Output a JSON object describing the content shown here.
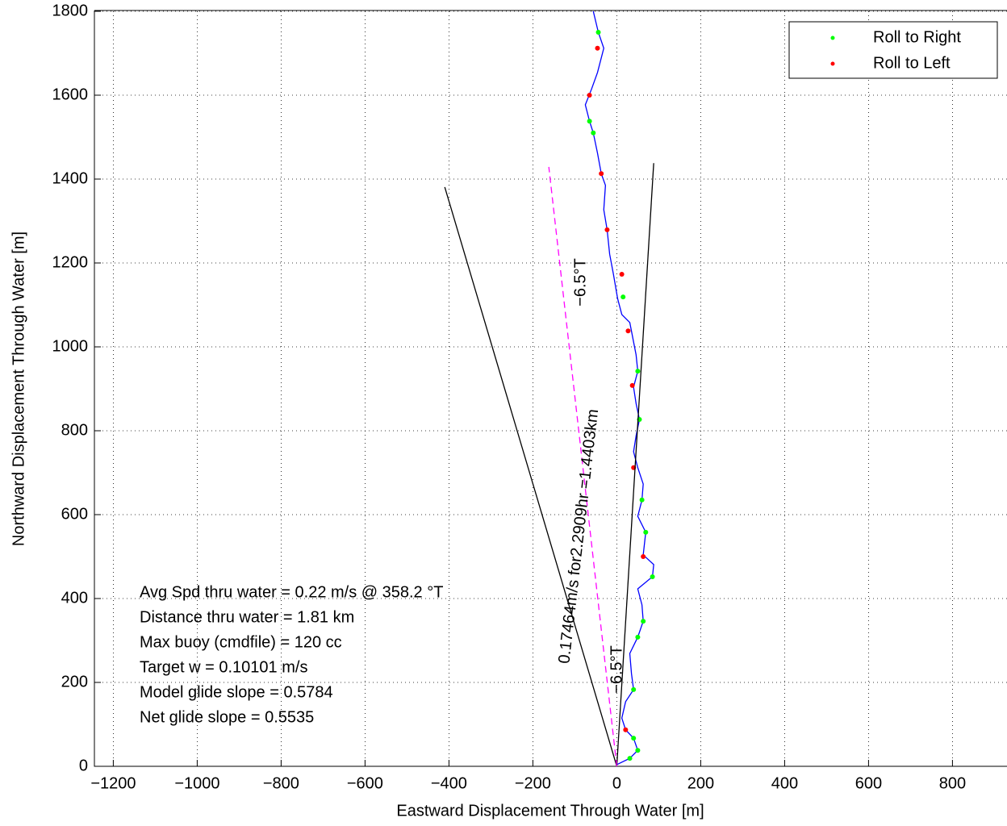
{
  "chart_data": {
    "type": "line",
    "xlabel": "Eastward Displacement Through Water [m]",
    "ylabel": "Northward Displacement Through Water [m]",
    "xlim": [
      -1245,
      930
    ],
    "ylim": [
      0,
      1800
    ],
    "xticks": [
      {
        "value": -1200,
        "label": "−1200"
      },
      {
        "value": -1000,
        "label": "−1000"
      },
      {
        "value": -800,
        "label": "−800"
      },
      {
        "value": -600,
        "label": "−600"
      },
      {
        "value": -400,
        "label": "−400"
      },
      {
        "value": -200,
        "label": "−200"
      },
      0,
      200,
      400,
      600,
      800
    ],
    "yticks": [
      0,
      200,
      400,
      600,
      800,
      1000,
      1200,
      1400,
      1600,
      1800
    ],
    "grid": true,
    "legend": "upper right",
    "series": [
      {
        "style": "line",
        "color": "#0000ff",
        "x": [
          0,
          31,
          50,
          40,
          21,
          12,
          21,
          40,
          35,
          31,
          50,
          63,
          60,
          50,
          85,
          88,
          63,
          69,
          50,
          60,
          63,
          50,
          40,
          46,
          54,
          46,
          40,
          50,
          46,
          31,
          12,
          2,
          -8,
          -17,
          -23,
          -31,
          -27,
          -37,
          -46,
          -56,
          -65,
          -75,
          -60,
          -46,
          -31,
          -44,
          -56
        ],
        "y": [
          4,
          19,
          38,
          67,
          87,
          115,
          154,
          183,
          221,
          269,
          308,
          346,
          385,
          423,
          452,
          481,
          504,
          558,
          596,
          635,
          673,
          712,
          750,
          788,
          827,
          865,
          904,
          942,
          981,
          1058,
          1077,
          1115,
          1173,
          1221,
          1279,
          1327,
          1385,
          1413,
          1462,
          1510,
          1538,
          1577,
          1615,
          1654,
          1712,
          1750,
          1800
        ]
      },
      {
        "style": "points",
        "name": "Roll to Right",
        "color": "#00ff00",
        "x": [
          31,
          50,
          40,
          40,
          50,
          63,
          85,
          69,
          60,
          54,
          50,
          15,
          -56,
          -65,
          -44
        ],
        "y": [
          19,
          38,
          67,
          183,
          308,
          346,
          452,
          558,
          635,
          827,
          942,
          1119,
          1510,
          1538,
          1750
        ]
      },
      {
        "style": "points",
        "name": "Roll to Left",
        "color": "#ff0000",
        "x": [
          21,
          63,
          40,
          37,
          27,
          12,
          -23,
          -37,
          -65,
          -46
        ],
        "y": [
          87,
          500,
          712,
          908,
          1038,
          1173,
          1279,
          1413,
          1600,
          1712
        ]
      },
      {
        "style": "line",
        "color": "#000000",
        "x": [
          0,
          -410
        ],
        "y": [
          0,
          1381
        ]
      },
      {
        "style": "line",
        "color": "#000000",
        "x": [
          0,
          88
        ],
        "y": [
          0,
          1438
        ]
      },
      {
        "style": "dashed",
        "color": "#ff00ff",
        "x": [
          0,
          -162
        ],
        "y": [
          0,
          1429
        ]
      }
    ],
    "text_box": [
      "Avg Spd thru water =  0.22 m/s @ 358.2    °T",
      "Distance thru water =  1.81 km",
      "Max buoy (cmdfile) = 120 cc",
      "Target w = 0.10101 m/s",
      "Model glide slope = 0.5784",
      "Net glide slope = 0.5535"
    ],
    "annotations": [
      "−6.5°T",
      "0.17464m/s for2.2909hr =1.4403km",
      "−6.5°T"
    ]
  }
}
